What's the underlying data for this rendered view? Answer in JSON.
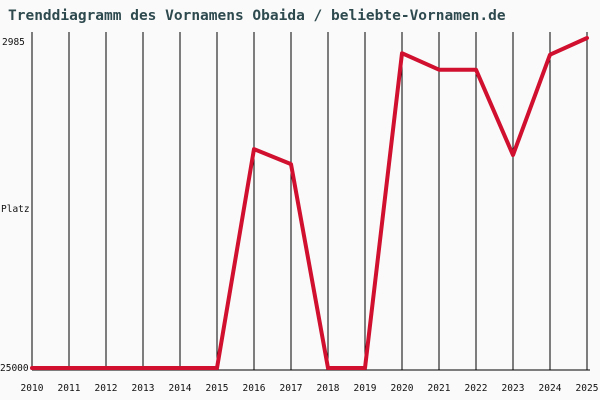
{
  "title": "Trenddiagramm des Vornamens Obaida / beliebte-Vornamen.de",
  "chart_data": {
    "type": "line",
    "title": "Trenddiagramm des Vornamens Obaida / beliebte-Vornamen.de",
    "ylabel": "Platz",
    "xlabel": "",
    "y_reversed": true,
    "ylim": [
      2985,
      25000
    ],
    "y_tick_labels": [
      "2985",
      "25000"
    ],
    "grid": "vertical",
    "color": "#d0102e",
    "series": [
      {
        "x": [
          "2010",
          "2011",
          "2012",
          "2013",
          "2014",
          "2015",
          "2016",
          "2017",
          "2018",
          "2019",
          "2020",
          "2021",
          "2022",
          "2023",
          "2024",
          "2025"
        ],
        "values": [
          25000,
          25000,
          25000,
          25000,
          25000,
          25000,
          10400,
          11400,
          25000,
          25000,
          4000,
          5100,
          5100,
          10800,
          4100,
          2985
        ]
      }
    ]
  }
}
